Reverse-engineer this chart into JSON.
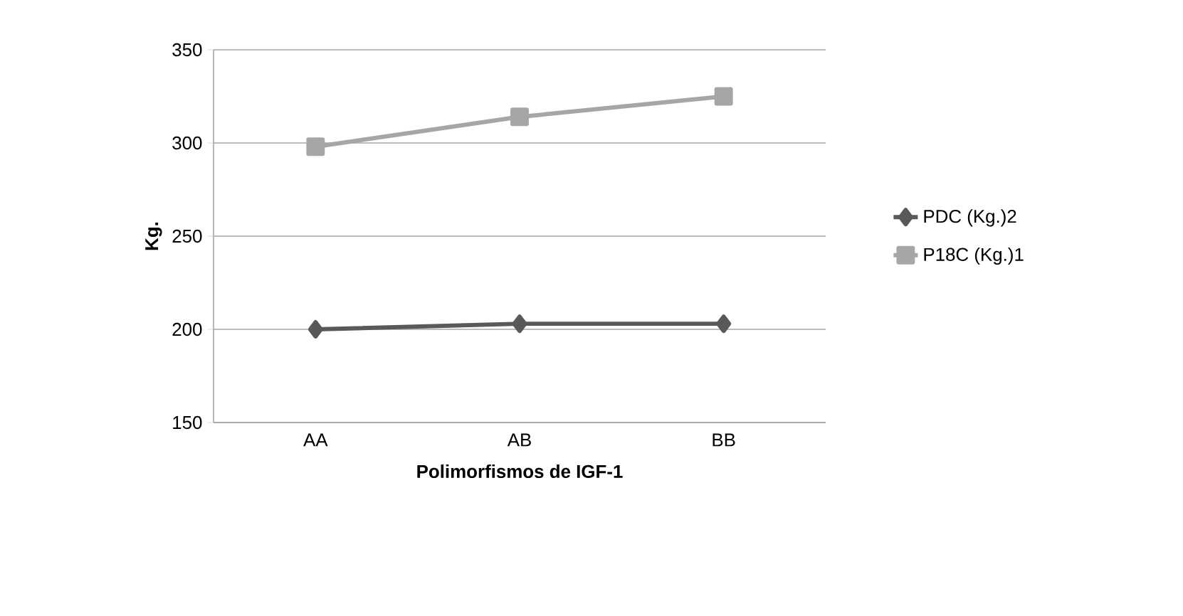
{
  "chart_data": {
    "type": "line",
    "xlabel": "Polimorfismos de IGF-1",
    "ylabel": "Kg.",
    "categories": [
      "AA",
      "AB",
      "BB"
    ],
    "series": [
      {
        "name": "PDC (Kg.)2",
        "color": "#595959",
        "marker": "diamond",
        "values": [
          200,
          203,
          203
        ]
      },
      {
        "name": "P18C (Kg.)1",
        "color": "#a6a6a6",
        "marker": "square",
        "values": [
          298,
          314,
          325
        ]
      }
    ],
    "ylim": [
      150,
      350
    ],
    "yticks": [
      150,
      200,
      250,
      300,
      350
    ],
    "grid": "y",
    "legend": "right"
  }
}
